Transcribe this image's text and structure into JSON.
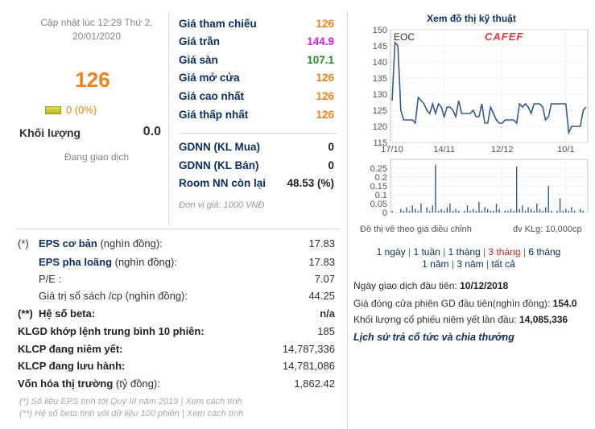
{
  "header": {
    "updated": "Cập nhật lúc 12:29 Thứ 2, 20/01/2020",
    "price": "126",
    "change": "0 (0%)",
    "volume_label": "Khối lượng",
    "volume_value": "0.0",
    "status": "Đang giao dịch"
  },
  "prices": [
    {
      "label": "Giá tham chiếu",
      "value": "126",
      "color": "#f0821e"
    },
    {
      "label": "Giá trần",
      "value": "144.9",
      "color": "#d81fd8"
    },
    {
      "label": "Giá sàn",
      "value": "107.1",
      "color": "#2a8a2a"
    },
    {
      "label": "Giá mở cửa",
      "value": "126",
      "color": "#f0821e"
    },
    {
      "label": "Giá cao nhất",
      "value": "126",
      "color": "#f0821e"
    },
    {
      "label": "Giá thấp nhất",
      "value": "126",
      "color": "#f0821e"
    }
  ],
  "foreign": [
    {
      "label": "GDNN (KL Mua)",
      "value": "0"
    },
    {
      "label": "GDNN (KL Bán)",
      "value": "0"
    },
    {
      "label": "Room NN còn lại",
      "value": "48.53 (%)"
    }
  ],
  "unit_note": "Đơn vị giá: 1000 VNĐ",
  "fundamentals": [
    {
      "mark": "(*)",
      "label": "EPS cơ bản",
      "suffix": " (nghìn đồng):",
      "value": "17.83"
    },
    {
      "mark": "",
      "label": "EPS pha loãng",
      "suffix": " (nghìn đồng):",
      "value": "17.83"
    },
    {
      "mark": "",
      "label": "P/E :",
      "suffix": "",
      "value": "7.07"
    },
    {
      "mark": "",
      "label": "Giá trị sổ sách /cp",
      "suffix": " (nghìn đồng):",
      "value": "44.25"
    },
    {
      "mark": "(**)",
      "label": "Hệ số beta:",
      "suffix": "",
      "value": "n/a"
    },
    {
      "mark": "",
      "label": "KLGD khớp lệnh trung bình 10 phiên:",
      "suffix": "",
      "value": "185"
    },
    {
      "mark": "",
      "label": "KLCP đang niêm yết:",
      "suffix": "",
      "value": "14,787,336"
    },
    {
      "mark": "",
      "label": "KLCP đang lưu hành:",
      "suffix": "",
      "value": "14,781,086"
    },
    {
      "mark": "",
      "label": "Vốn hóa thị trường",
      "suffix": " (tỷ đồng):",
      "value": "1,862.42"
    }
  ],
  "footnotes": [
    "(*) Số liệu EPS tính tới Quý III năm 2019 | Xem cách tính",
    "(**) Hệ số beta tính với dữ liệu 100 phiên | Xem cách tính"
  ],
  "chart": {
    "title": "Xem đồ thị kỹ thuật",
    "symbol": "EOC",
    "logo": "CAFEF",
    "note_left": "Đồ thị vẽ theo giá điều chỉnh",
    "note_right": "đv KLg: 10,000cp",
    "line_color": "#3b5a8a",
    "logo_color": "#e8383d"
  },
  "ranges": {
    "row1": [
      "1 ngày",
      "1 tuần",
      "1 tháng",
      "3 tháng",
      "6 tháng"
    ],
    "row2": [
      "1 năm",
      "3 năm",
      "tất cả"
    ],
    "active": "3 tháng"
  },
  "info": {
    "first_day_label": "Ngày giao dịch đầu tiên:",
    "first_day_value": "10/12/2018",
    "first_close_label": "Giá đóng cửa phiên GD đầu tiên(nghìn đồng):",
    "first_close_value": "154.0",
    "first_shares_label": "Khối lượng cổ phiếu niêm yết lần đầu:",
    "first_shares_value": "14,085,336",
    "history_link": "Lịch sử trả cổ tức và chia thưởng"
  },
  "chart_data": [
    {
      "type": "line",
      "series": [
        {
          "name": "EOC",
          "values": [
            128,
            146,
            145,
            125,
            122,
            122,
            122,
            122,
            121,
            129,
            128,
            127,
            125,
            124,
            127,
            124,
            127,
            126,
            123,
            126,
            126,
            125,
            123,
            128,
            124,
            124,
            124,
            124,
            125,
            123,
            123,
            127,
            121,
            121,
            126,
            124,
            122,
            121,
            121,
            122,
            122,
            122,
            122,
            121,
            127,
            126,
            127,
            126,
            124,
            127,
            127,
            127,
            126,
            122,
            123,
            127,
            127,
            127,
            127,
            127,
            127,
            118,
            120,
            120,
            120,
            120,
            125,
            126
          ]
        }
      ],
      "xticks": [
        "17/10",
        "14/11",
        "12/12",
        "10/1"
      ],
      "yticks": [
        115,
        120,
        125,
        130,
        135,
        140,
        145,
        150
      ],
      "ylim": [
        115,
        150
      ],
      "grid": true
    },
    {
      "type": "bar",
      "series": [
        {
          "name": "KLg",
          "values": [
            0.01,
            0.0,
            0.0,
            0.02,
            0.01,
            0.03,
            0.01,
            0.04,
            0.02,
            0.01,
            0.05,
            0.0,
            0.03,
            0.01,
            0.04,
            0.27,
            0.01,
            0.02,
            0.01,
            0.03,
            0.05,
            0.01,
            0.02,
            0.01,
            0.0,
            0.01,
            0.04,
            0.01,
            0.02,
            0.01,
            0.06,
            0.01,
            0.03,
            0.02,
            0.01,
            0.01,
            0.05,
            0.02,
            0.0,
            0.01,
            0.01,
            0.02,
            0.01,
            0.26,
            0.02,
            0.04,
            0.01,
            0.03,
            0.02,
            0.01,
            0.05,
            0.02,
            0.01,
            0.03,
            0.15,
            0.01,
            0.0,
            0.01,
            0.08,
            0.01,
            0.02,
            0.01,
            0.03,
            0.01,
            0.0,
            0.02,
            0.01,
            0.0
          ]
        }
      ],
      "yticks": [
        0,
        0.05,
        0.1,
        0.15,
        0.2,
        0.25
      ],
      "ylim": [
        0,
        0.3
      ],
      "grid": true
    }
  ]
}
